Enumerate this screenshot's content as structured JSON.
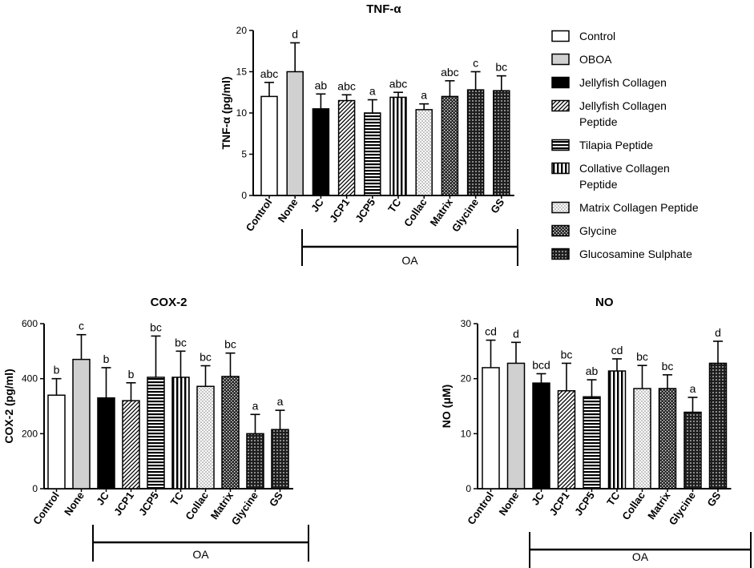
{
  "legend": [
    {
      "label": "Control",
      "pattern": "white"
    },
    {
      "label": "OBOA",
      "pattern": "grey"
    },
    {
      "label": "Jellyfish Collagen",
      "pattern": "black"
    },
    {
      "label": "Jellyfish Collagen Peptide",
      "lines": [
        "Jellyfish Collagen",
        "Peptide"
      ],
      "pattern": "diag"
    },
    {
      "label": "Tilapia Peptide",
      "pattern": "horiz"
    },
    {
      "label": "Collative Collagen Peptide",
      "lines": [
        "Collative Collagen",
        "Peptide"
      ],
      "pattern": "vert"
    },
    {
      "label": "Matrix Collagen Peptide",
      "pattern": "dots"
    },
    {
      "label": "Glycine",
      "pattern": "check"
    },
    {
      "label": "Glucosamine Sulphate",
      "pattern": "grid"
    }
  ],
  "group_label": "OA",
  "chart_data": [
    {
      "id": "tnf",
      "type": "bar",
      "title": "TNF-α",
      "ylabel": "TNF-α (pg/ml)",
      "xlabel": "",
      "ylim": [
        0,
        20
      ],
      "yticks": [
        0,
        5,
        10,
        15,
        20
      ],
      "categories": [
        "Control",
        "None",
        "JC",
        "JCP1",
        "JCP5",
        "TC",
        "Collac",
        "Matrix",
        "Glycine",
        "GS"
      ],
      "values": [
        12.0,
        15.0,
        10.5,
        11.5,
        10.0,
        11.9,
        10.4,
        12.0,
        12.8,
        12.7
      ],
      "errors": [
        1.7,
        3.5,
        1.8,
        0.7,
        1.6,
        0.6,
        0.7,
        1.9,
        2.2,
        1.8
      ],
      "significance": [
        "abc",
        "d",
        "ab",
        "abc",
        "a",
        "abc",
        "a",
        "abc",
        "c",
        "bc"
      ],
      "patterns": [
        "white",
        "grey",
        "black",
        "diag",
        "horiz",
        "vert",
        "dots",
        "check",
        "grid"
      ]
    },
    {
      "id": "cox",
      "type": "bar",
      "title": "COX-2",
      "ylabel": "COX-2 (pg/ml)",
      "xlabel": "",
      "ylim": [
        0,
        600
      ],
      "yticks": [
        0,
        200,
        400,
        600
      ],
      "categories": [
        "Control",
        "None",
        "JC",
        "JCP1",
        "JCP5",
        "TC",
        "Collac",
        "Matrix",
        "Glycine",
        "GS"
      ],
      "values": [
        340,
        470,
        330,
        320,
        405,
        405,
        372,
        408,
        200,
        215
      ],
      "errors": [
        60,
        90,
        110,
        65,
        150,
        95,
        75,
        85,
        70,
        70
      ],
      "significance": [
        "b",
        "c",
        "b",
        "b",
        "bc",
        "bc",
        "bc",
        "bc",
        "a",
        "a"
      ]
    },
    {
      "id": "no",
      "type": "bar",
      "title": "NO",
      "ylabel": "NO (μM)",
      "xlabel": "",
      "ylim": [
        0,
        30
      ],
      "yticks": [
        0,
        10,
        20,
        30
      ],
      "categories": [
        "Control",
        "None",
        "JC",
        "JCP1",
        "JCP5",
        "TC",
        "Collac",
        "Matrix",
        "Glycine",
        "GS"
      ],
      "values": [
        22.0,
        22.8,
        19.2,
        17.8,
        16.7,
        21.4,
        18.2,
        18.2,
        13.9,
        22.8
      ],
      "errors": [
        5.0,
        3.8,
        1.7,
        5.0,
        3.1,
        2.2,
        4.2,
        2.5,
        2.7,
        4.0
      ],
      "significance": [
        "cd",
        "d",
        "bcd",
        "bc",
        "ab",
        "cd",
        "bc",
        "bc",
        "a",
        "d"
      ]
    }
  ]
}
